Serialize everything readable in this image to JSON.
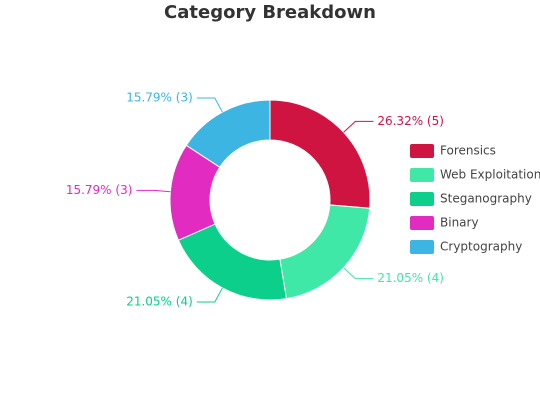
{
  "chart_data": {
    "type": "donut",
    "title": "Category Breakdown",
    "categories": [
      "Forensics",
      "Web Exploitation",
      "Steganography",
      "Binary",
      "Cryptography"
    ],
    "values": [
      5,
      4,
      4,
      3,
      3
    ],
    "value_labels": [
      "26.32% (5)",
      "21.05% (4)",
      "21.05% (4)",
      "15.79% (3)",
      "15.79% (3)"
    ],
    "colors": [
      "#d01442",
      "#3fe8a6",
      "#0bcf8a",
      "#e22bc1",
      "#3cb5e3"
    ],
    "legend": "right"
  }
}
